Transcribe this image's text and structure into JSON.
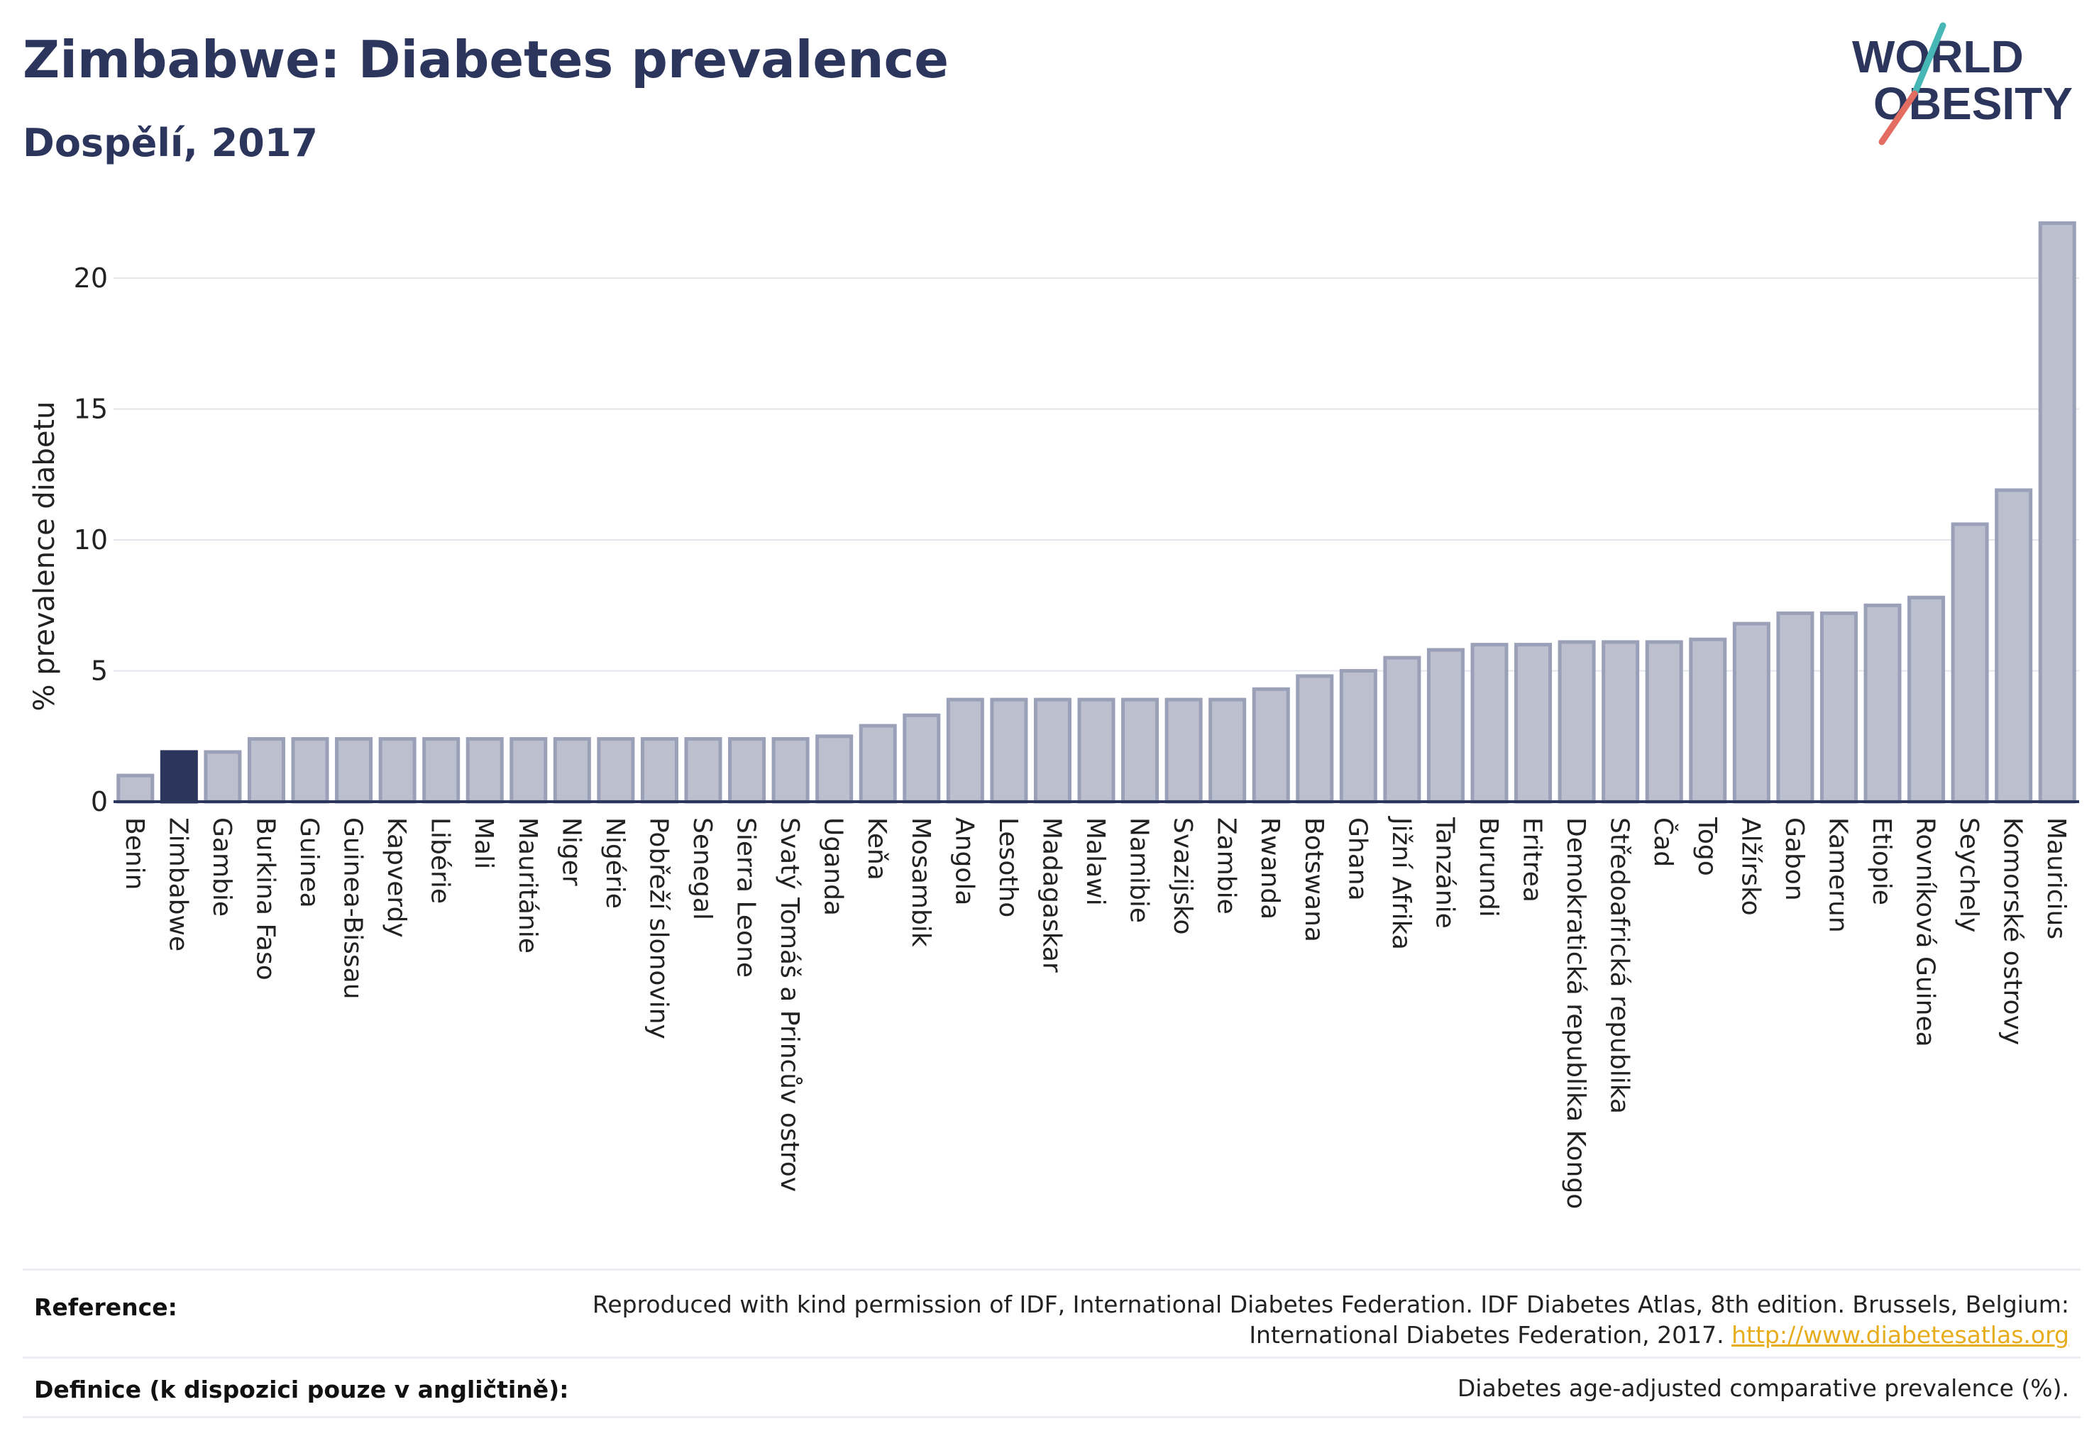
{
  "header": {
    "title": "Zimbabwe: Diabetes prevalence",
    "subtitle": "Dospělí, 2017",
    "logo_line1": "WORLD",
    "logo_line2": "OBESITY"
  },
  "chart_data": {
    "type": "bar",
    "ylabel": "% prevalence diabetu",
    "xlabel": "",
    "ylim": [
      0,
      22.5
    ],
    "yticks": [
      0,
      5,
      10,
      15,
      20
    ],
    "grid": true,
    "highlight": "Zimbabwe",
    "colors": {
      "bar": "#bcc0ce",
      "bar_edge": "#9aa0b8",
      "highlight": "#2c355c",
      "grid": "#e4e6ec"
    },
    "categories": [
      "Benin",
      "Zimbabwe",
      "Gambie",
      "Burkina Faso",
      "Guinea",
      "Guinea-Bissau",
      "Kapverdy",
      "Libérie",
      "Mali",
      "Mauritánie",
      "Niger",
      "Nigérie",
      "Pobřeží slonoviny",
      "Senegal",
      "Sierra Leone",
      "Svatý Tomáš a Princův ostrov",
      "Uganda",
      "Keňa",
      "Mosambik",
      "Angola",
      "Lesotho",
      "Madagaskar",
      "Malawi",
      "Namibie",
      "Svazijsko",
      "Zambie",
      "Rwanda",
      "Botswana",
      "Ghana",
      "Jižní Afrika",
      "Tanzánie",
      "Burundi",
      "Eritrea",
      "Demokratická republika Kongo",
      "Středoafrická republika",
      "Čad",
      "Togo",
      "Alžírsko",
      "Gabon",
      "Kamerun",
      "Etiopie",
      "Rovníková Guinea",
      "Seychely",
      "Komorské ostrovy",
      "Mauricius"
    ],
    "values": [
      1.0,
      1.9,
      1.9,
      2.4,
      2.4,
      2.4,
      2.4,
      2.4,
      2.4,
      2.4,
      2.4,
      2.4,
      2.4,
      2.4,
      2.4,
      2.4,
      2.5,
      2.9,
      3.3,
      3.9,
      3.9,
      3.9,
      3.9,
      3.9,
      3.9,
      3.9,
      4.3,
      4.8,
      5.0,
      5.5,
      5.8,
      6.0,
      6.0,
      6.1,
      6.1,
      6.1,
      6.2,
      6.8,
      7.2,
      7.2,
      7.5,
      7.8,
      10.6,
      11.9,
      22.1
    ]
  },
  "footer": {
    "reference_label": "Reference:",
    "reference_text_line1": "Reproduced with kind permission of IDF, International Diabetes Federation. IDF Diabetes Atlas, 8th edition. Brussels, Belgium:",
    "reference_text_line2": "International Diabetes Federation, 2017.",
    "reference_link": "http://www.diabetesatlas.org",
    "definition_label": "Definice (k dispozici pouze v angličtině):",
    "definition_text": "Diabetes age-adjusted comparative prevalence (%)."
  }
}
